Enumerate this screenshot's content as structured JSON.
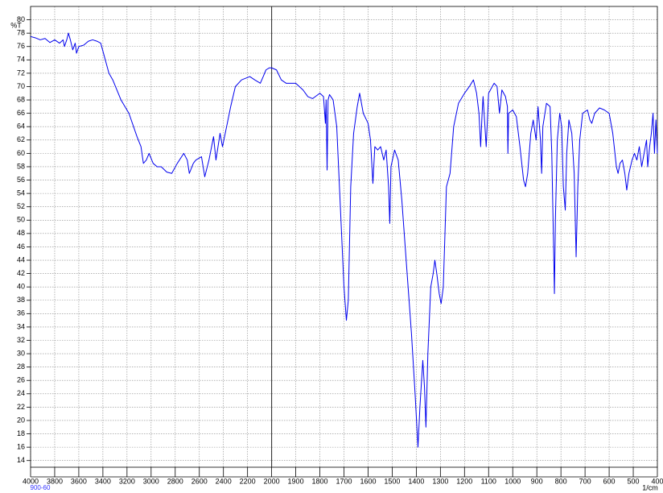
{
  "chart_data": {
    "type": "line",
    "y_label": "%T",
    "x_label": "1/cm",
    "sample_label": "900-60",
    "color": "#0000ee",
    "grid": true,
    "xlim": [
      4000,
      400
    ],
    "ylim": [
      13,
      82
    ],
    "x_scale_break": 2000,
    "x_scale_ratio": 2,
    "xticks": [
      4000,
      3800,
      3600,
      3400,
      3200,
      3000,
      2800,
      2600,
      2400,
      2200,
      2000,
      1900,
      1800,
      1700,
      1600,
      1500,
      1400,
      1300,
      1200,
      1100,
      1000,
      900,
      800,
      700,
      600,
      500,
      400
    ],
    "yticks": [
      14,
      16,
      18,
      20,
      22,
      24,
      26,
      28,
      30,
      32,
      34,
      36,
      38,
      40,
      42,
      44,
      46,
      48,
      50,
      52,
      54,
      56,
      58,
      60,
      62,
      64,
      66,
      68,
      70,
      72,
      74,
      76,
      78,
      80
    ],
    "x": [
      4000,
      3960,
      3920,
      3880,
      3840,
      3800,
      3760,
      3730,
      3719,
      3700,
      3686,
      3670,
      3650,
      3630,
      3619,
      3600,
      3560,
      3520,
      3485,
      3450,
      3418,
      3380,
      3350,
      3318,
      3250,
      3184,
      3117,
      3084,
      3064,
      3040,
      3017,
      2983,
      2950,
      2916,
      2870,
      2829,
      2783,
      2729,
      2700,
      2683,
      2650,
      2629,
      2582,
      2555,
      2520,
      2482,
      2462,
      2428,
      2408,
      2368,
      2340,
      2301,
      2250,
      2181,
      2140,
      2094,
      2070,
      2047,
      2020,
      2000,
      1980,
      1960,
      1940,
      1900,
      1870,
      1850,
      1830,
      1800,
      1785,
      1777,
      1774,
      1770,
      1766,
      1760,
      1745,
      1730,
      1715,
      1700,
      1690,
      1682,
      1672,
      1660,
      1645,
      1635,
      1620,
      1600,
      1590,
      1580,
      1572,
      1560,
      1548,
      1535,
      1525,
      1515,
      1510,
      1505,
      1490,
      1475,
      1460,
      1440,
      1420,
      1405,
      1393,
      1385,
      1373,
      1366,
      1360,
      1352,
      1340,
      1330,
      1323,
      1315,
      1305,
      1297,
      1288,
      1275,
      1260,
      1245,
      1225,
      1200,
      1180,
      1163,
      1150,
      1140,
      1133,
      1127,
      1123,
      1117,
      1110,
      1100,
      1085,
      1077,
      1065,
      1055,
      1045,
      1030,
      1022,
      1020,
      1017,
      1000,
      985,
      970,
      955,
      947,
      938,
      925,
      915,
      903,
      895,
      885,
      880,
      875,
      860,
      845,
      838,
      830,
      827,
      823,
      815,
      805,
      797,
      790,
      782,
      776,
      767,
      755,
      745,
      737,
      730,
      722,
      710,
      690,
      680,
      672,
      660,
      640,
      620,
      600,
      585,
      570,
      563,
      555,
      545,
      535,
      527,
      518,
      505,
      495,
      485,
      475,
      465,
      455,
      445,
      440,
      432,
      425,
      418,
      412,
      406,
      400
    ],
    "values": [
      77.5,
      77.3,
      77,
      77.2,
      76.6,
      77,
      76.5,
      77,
      76,
      77,
      78,
      77,
      75.5,
      76.5,
      75,
      76,
      76.2,
      76.8,
      77,
      76.8,
      76.5,
      74,
      72,
      71,
      68,
      66,
      62.5,
      61,
      58.5,
      59,
      60,
      58.5,
      58,
      58,
      57.2,
      57,
      58.5,
      60,
      59,
      57,
      58.5,
      59,
      59.5,
      56.5,
      59,
      62.5,
      59,
      63,
      61,
      64.5,
      67,
      70,
      71,
      71.5,
      71,
      70.5,
      71.5,
      72.5,
      72.8,
      72.8,
      72.5,
      71,
      70.5,
      70.5,
      69.5,
      68.5,
      68.2,
      69,
      68.5,
      64.5,
      68,
      57.5,
      68,
      68.8,
      68,
      64,
      52,
      40,
      35,
      38,
      55,
      63,
      67,
      69,
      66,
      64.5,
      62,
      55.5,
      61,
      60.5,
      61,
      59,
      60.5,
      55,
      49.5,
      58,
      60.5,
      59,
      53,
      43,
      33,
      24,
      16,
      22,
      29,
      25,
      19,
      30,
      40,
      42,
      44,
      42,
      39,
      37.5,
      40,
      55,
      57,
      64,
      67.5,
      69,
      70,
      71,
      69,
      66,
      61,
      66,
      68.5,
      65,
      61,
      69,
      70,
      70.5,
      70,
      66,
      69.5,
      68.5,
      67,
      60,
      66,
      66.5,
      65.5,
      61,
      56,
      55,
      57,
      63,
      65,
      62,
      67,
      62,
      57,
      64,
      67.5,
      67,
      60,
      45,
      39,
      50,
      62,
      66,
      64,
      55,
      51.5,
      60,
      65,
      63,
      57,
      44.5,
      55,
      62,
      66,
      66.5,
      65,
      64.5,
      66,
      66.8,
      66.5,
      66,
      63,
      58,
      57,
      58.5,
      59,
      57,
      54.5,
      57,
      59,
      60,
      59,
      61,
      58,
      60,
      62,
      58,
      61,
      63,
      66,
      60,
      65,
      60
    ]
  }
}
